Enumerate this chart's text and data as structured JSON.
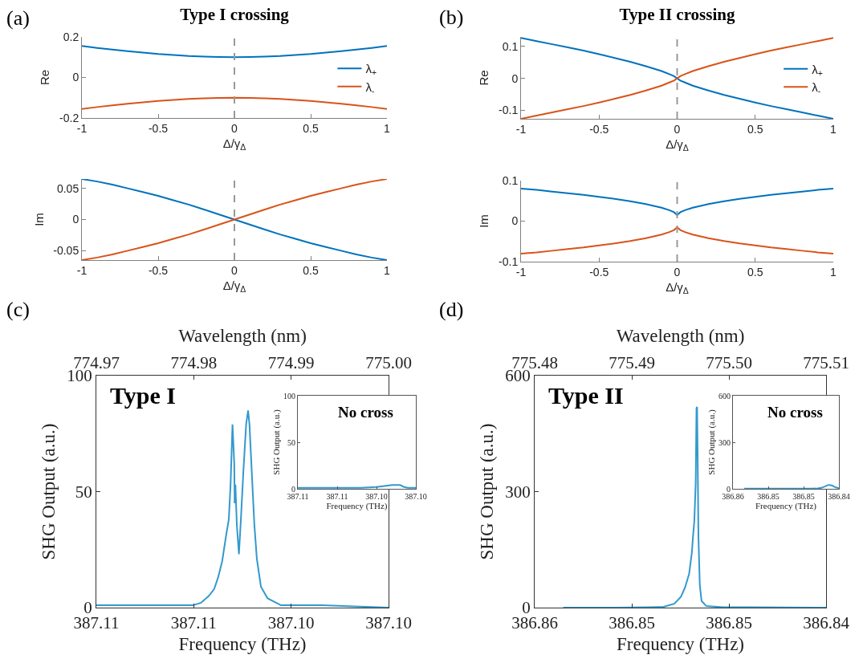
{
  "chart_data": [
    {
      "type": "line",
      "title": "Type I crossing",
      "ylabel": "Re",
      "xlabel": "Δ/γ$_{Δ}$",
      "annotations": [
        "(a)"
      ],
      "legend": "right",
      "xlim": [
        -1,
        1
      ],
      "xticks": [
        -1,
        -0.5,
        0,
        0.5,
        1
      ],
      "ylim": [
        -0.2,
        0.2
      ],
      "yticks": [
        -0.2,
        0,
        0.2
      ],
      "ref_lines": [
        {
          "axis": "x",
          "value": 0,
          "color": "#999999",
          "line_style": "dashed"
        }
      ],
      "x": [
        -1,
        -0.9,
        -0.8,
        -0.7,
        -0.6,
        -0.5,
        -0.4,
        -0.3,
        -0.2,
        -0.1,
        0,
        0.1,
        0.2,
        0.3,
        0.4,
        0.5,
        0.6,
        0.7,
        0.8,
        0.9,
        1
      ],
      "series": [
        {
          "name": "λ$_{+}$",
          "color": "#0072bd",
          "values": [
            0.155,
            0.146,
            0.138,
            0.13,
            0.123,
            0.116,
            0.111,
            0.106,
            0.103,
            0.101,
            0.1,
            0.101,
            0.103,
            0.106,
            0.111,
            0.116,
            0.123,
            0.13,
            0.138,
            0.146,
            0.155
          ]
        },
        {
          "name": "λ$_{-}$",
          "color": "#d95319",
          "values": [
            -0.155,
            -0.146,
            -0.138,
            -0.13,
            -0.123,
            -0.116,
            -0.111,
            -0.106,
            -0.103,
            -0.101,
            -0.1,
            -0.101,
            -0.103,
            -0.106,
            -0.111,
            -0.116,
            -0.123,
            -0.13,
            -0.138,
            -0.146,
            -0.155
          ]
        }
      ]
    },
    {
      "type": "line",
      "ylabel": "Im",
      "xlabel": "Δ/γ$_{Δ}$",
      "xlim": [
        -1,
        1
      ],
      "xticks": [
        -1,
        -0.5,
        0,
        0.5,
        1
      ],
      "ylim": [
        -0.065,
        0.065
      ],
      "yticks": [
        -0.05,
        0,
        0.05
      ],
      "ref_lines": [
        {
          "axis": "x",
          "value": 0,
          "color": "#999999",
          "line_style": "dashed"
        }
      ],
      "x": [
        -1,
        -0.9,
        -0.8,
        -0.7,
        -0.6,
        -0.5,
        -0.4,
        -0.3,
        -0.2,
        -0.1,
        0,
        0.1,
        0.2,
        0.3,
        0.4,
        0.5,
        0.6,
        0.7,
        0.8,
        0.9,
        1
      ],
      "series": [
        {
          "color": "#0072bd",
          "values": [
            0.065,
            0.061,
            0.056,
            0.05,
            0.044,
            0.038,
            0.031,
            0.024,
            0.016,
            0.008,
            0,
            -0.008,
            -0.016,
            -0.024,
            -0.031,
            -0.038,
            -0.044,
            -0.05,
            -0.056,
            -0.061,
            -0.065
          ]
        },
        {
          "color": "#d95319",
          "values": [
            -0.065,
            -0.061,
            -0.056,
            -0.05,
            -0.044,
            -0.038,
            -0.031,
            -0.024,
            -0.016,
            -0.008,
            0,
            0.008,
            0.016,
            0.024,
            0.031,
            0.038,
            0.044,
            0.05,
            0.056,
            0.061,
            0.065
          ]
        }
      ]
    },
    {
      "type": "line",
      "title": "Type II crossing",
      "ylabel": "Re",
      "xlabel": "Δ/γ$_{Δ}$",
      "annotations": [
        "(b)"
      ],
      "legend": "right",
      "xlim": [
        -1,
        1
      ],
      "xticks": [
        -1,
        -0.5,
        0,
        0.5,
        1
      ],
      "ylim": [
        -0.127,
        0.13
      ],
      "yticks": [
        -0.1,
        0,
        0.1
      ],
      "ref_lines": [
        {
          "axis": "x",
          "value": 0,
          "color": "#999999",
          "line_style": "dashed"
        }
      ],
      "x": [
        -1,
        -0.9,
        -0.8,
        -0.7,
        -0.6,
        -0.5,
        -0.4,
        -0.3,
        -0.2,
        -0.1,
        -0.05,
        -0.02,
        0,
        0.02,
        0.05,
        0.1,
        0.2,
        0.3,
        0.4,
        0.5,
        0.6,
        0.7,
        0.8,
        0.9,
        1
      ],
      "series": [
        {
          "name": "λ$_{+}$",
          "color": "#0072bd",
          "values": [
            0.127,
            0.117,
            0.107,
            0.097,
            0.087,
            0.076,
            0.064,
            0.052,
            0.038,
            0.023,
            0.013,
            0.007,
            0,
            -0.007,
            -0.013,
            -0.023,
            -0.038,
            -0.052,
            -0.064,
            -0.076,
            -0.087,
            -0.097,
            -0.107,
            -0.117,
            -0.127
          ]
        },
        {
          "name": "λ$_{-}$",
          "color": "#d95319",
          "values": [
            -0.127,
            -0.117,
            -0.107,
            -0.097,
            -0.087,
            -0.076,
            -0.064,
            -0.052,
            -0.038,
            -0.023,
            -0.013,
            -0.007,
            0,
            0.007,
            0.013,
            0.023,
            0.038,
            0.052,
            0.064,
            0.076,
            0.087,
            0.097,
            0.107,
            0.117,
            0.127
          ]
        }
      ]
    },
    {
      "type": "line",
      "ylabel": "Im",
      "xlabel": "Δ/γ$_{Δ}$",
      "xlim": [
        -1,
        1
      ],
      "xticks": [
        -1,
        -0.5,
        0,
        0.5,
        1
      ],
      "ylim": [
        -0.1,
        0.1
      ],
      "yticks": [
        -0.1,
        0,
        0.1
      ],
      "ref_lines": [
        {
          "axis": "x",
          "value": 0,
          "color": "#999999",
          "line_style": "dashed"
        }
      ],
      "x": [
        -1,
        -0.9,
        -0.8,
        -0.7,
        -0.6,
        -0.5,
        -0.4,
        -0.3,
        -0.2,
        -0.1,
        -0.05,
        -0.02,
        0,
        0.02,
        0.05,
        0.1,
        0.2,
        0.3,
        0.4,
        0.5,
        0.6,
        0.7,
        0.8,
        0.9,
        1
      ],
      "series": [
        {
          "color": "#0072bd",
          "values": [
            0.08,
            0.077,
            0.073,
            0.069,
            0.065,
            0.06,
            0.055,
            0.049,
            0.042,
            0.033,
            0.027,
            0.022,
            0.015,
            0.022,
            0.027,
            0.033,
            0.042,
            0.049,
            0.055,
            0.06,
            0.065,
            0.069,
            0.073,
            0.077,
            0.08
          ]
        },
        {
          "color": "#d95319",
          "values": [
            -0.08,
            -0.077,
            -0.073,
            -0.069,
            -0.065,
            -0.06,
            -0.055,
            -0.049,
            -0.042,
            -0.033,
            -0.027,
            -0.022,
            -0.015,
            -0.022,
            -0.027,
            -0.033,
            -0.042,
            -0.049,
            -0.055,
            -0.06,
            -0.065,
            -0.069,
            -0.073,
            -0.077,
            -0.08
          ]
        }
      ]
    },
    {
      "type": "line",
      "xlabel": "Frequency (THz)",
      "x2label": "Wavelength (nm)",
      "ylabel": "SHG Output (a.u.)",
      "annotations": [
        "(c)",
        "Type I"
      ],
      "xlim": [
        387.112,
        387.097
      ],
      "xticks": [
        {
          "value": 387.112,
          "label": "387.11"
        },
        {
          "value": 387.107,
          "label": "387.11"
        },
        {
          "value": 387.102,
          "label": "387.10"
        },
        {
          "value": 387.097,
          "label": "387.10"
        }
      ],
      "x2lim": [
        774.97,
        775.0
      ],
      "x2ticks": [
        774.97,
        774.98,
        774.99,
        {
          "value": 775.0,
          "label": "775.00"
        }
      ],
      "ylim": [
        0,
        100
      ],
      "yticks": [
        0,
        50,
        100
      ],
      "x": [
        387.112,
        387.11008,
        387.1087,
        387.1076,
        387.10705,
        387.10664,
        387.10623,
        387.10595,
        387.10575,
        387.10554,
        387.10534,
        387.1052,
        387.10511,
        387.10501,
        387.10492,
        387.1049,
        387.10486,
        387.10479,
        387.10468,
        387.10458,
        387.10445,
        387.10431,
        387.10421,
        387.10414,
        387.10403,
        387.10389,
        387.10376,
        387.10355,
        387.10321,
        387.10252,
        387.10183,
        387.10046,
        387.097
      ],
      "series": [
        {
          "color": "#3399cc",
          "values": [
            1,
            1,
            1,
            1,
            1,
            2,
            5,
            8,
            13,
            20,
            31,
            38,
            53,
            79,
            62,
            45,
            53,
            36,
            23,
            38,
            59,
            79,
            85,
            79,
            60,
            36,
            21,
            9,
            4,
            1,
            1,
            1,
            0
          ]
        }
      ]
    },
    {
      "type": "line",
      "xlabel": "Frequency (THz)",
      "ylabel": "SHG Output (a.u.)",
      "annotations": [
        "No cross"
      ],
      "xlim": [
        387.112,
        387.097
      ],
      "xticks": [
        {
          "value": 387.112,
          "label": "387.11"
        },
        {
          "value": 387.107,
          "label": "387.11"
        },
        {
          "value": 387.102,
          "label": "387.10"
        },
        {
          "value": 387.097,
          "label": "387.10"
        }
      ],
      "ylim": [
        0,
        100
      ],
      "yticks": [
        0,
        50,
        100
      ],
      "x": [
        387.112,
        387.108,
        387.104,
        387.102,
        387.101,
        387.1,
        387.0995,
        387.099,
        387.0985,
        387.098,
        387.097
      ],
      "series": [
        {
          "color": "#3399cc",
          "values": [
            1,
            1,
            1,
            2,
            3,
            4,
            4,
            4,
            2,
            1,
            1
          ]
        }
      ]
    },
    {
      "type": "line",
      "xlabel": "Frequency (THz)",
      "x2label": "Wavelength (nm)",
      "ylabel": "SHG Output (a.u.)",
      "annotations": [
        "(d)",
        "Type II"
      ],
      "xlim": [
        386.857,
        386.842
      ],
      "xticks": [
        {
          "value": 386.857,
          "label": "386.86"
        },
        {
          "value": 386.852,
          "label": "386.85"
        },
        {
          "value": 386.847,
          "label": "386.85"
        },
        {
          "value": 386.842,
          "label": "386.84"
        }
      ],
      "x2lim": [
        775.48,
        775.51
      ],
      "x2ticks": [
        775.48,
        775.49,
        {
          "value": 775.5,
          "label": "775.50"
        },
        775.51
      ],
      "ylim": [
        0,
        600
      ],
      "yticks": [
        0,
        300,
        600
      ],
      "x": [
        386.85553,
        386.85284,
        386.85105,
        386.85036,
        386.84981,
        386.84947,
        386.84926,
        386.84905,
        386.84891,
        386.84885,
        386.84878,
        386.84871,
        386.84867,
        386.84864,
        386.84861,
        386.84857,
        386.8485,
        386.84841,
        386.84816,
        386.84733,
        386.84596,
        386.842
      ],
      "series": [
        {
          "color": "#3399cc",
          "values": [
            0,
            0,
            1,
            2,
            10,
            28,
            52,
            87,
            142,
            183,
            225,
            322,
            516,
            519,
            391,
            183,
            59,
            17,
            4,
            1,
            1,
            0
          ]
        }
      ]
    },
    {
      "type": "line",
      "xlabel": "Frequency (THz)",
      "ylabel": "SHG Output (a.u.)",
      "annotations": [
        "No cross"
      ],
      "xlim": [
        386.857,
        386.842
      ],
      "xticks": [
        {
          "value": 386.857,
          "label": "386.86"
        },
        {
          "value": 386.852,
          "label": "386.85"
        },
        {
          "value": 386.847,
          "label": "386.85"
        },
        {
          "value": 386.842,
          "label": "386.84"
        }
      ],
      "ylim": [
        0,
        600
      ],
      "yticks": [
        0,
        300,
        600
      ],
      "x": [
        386.8554,
        386.85,
        386.846,
        386.845,
        386.8445,
        386.844,
        386.8435,
        386.843,
        386.8425,
        386.842
      ],
      "series": [
        {
          "color": "#3399cc",
          "values": [
            1,
            1,
            1,
            2,
            6,
            15,
            25,
            22,
            10,
            4
          ]
        }
      ]
    }
  ]
}
